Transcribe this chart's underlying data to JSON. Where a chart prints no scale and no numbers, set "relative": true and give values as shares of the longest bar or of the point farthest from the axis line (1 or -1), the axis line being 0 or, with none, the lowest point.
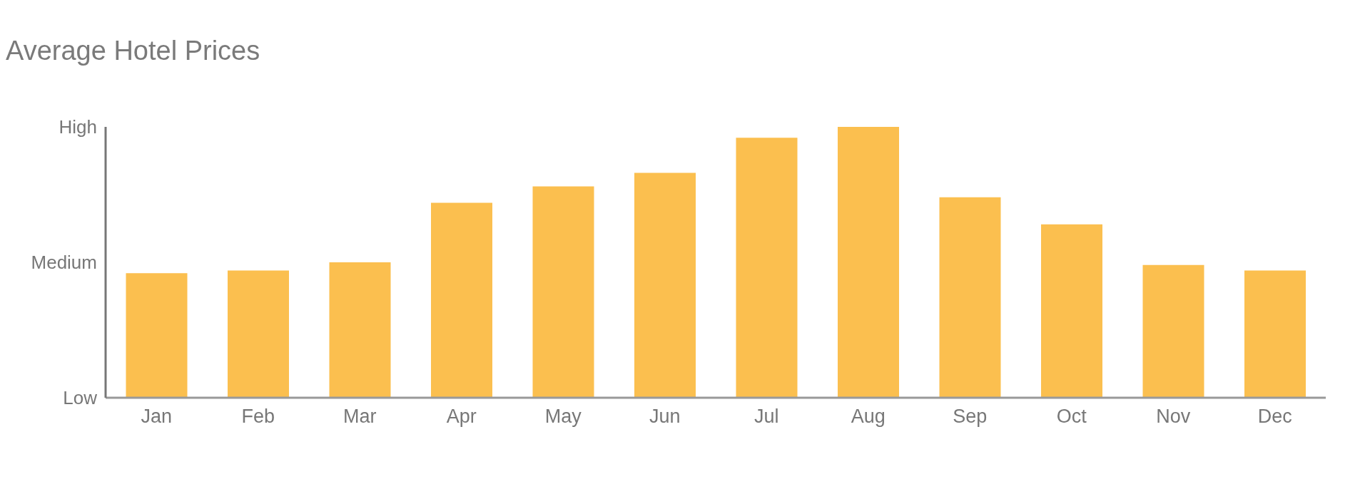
{
  "chart_data": {
    "type": "bar",
    "title": "Average Hotel Prices",
    "categories": [
      "Jan",
      "Feb",
      "Mar",
      "Apr",
      "May",
      "Jun",
      "Jul",
      "Aug",
      "Sep",
      "Oct",
      "Nov",
      "Dec"
    ],
    "values": [
      0.46,
      0.47,
      0.5,
      0.72,
      0.78,
      0.83,
      0.96,
      1.0,
      0.74,
      0.64,
      0.49,
      0.47
    ],
    "color": "#fbbf4f",
    "relative": true,
    "annotations": [
      "Low",
      "Medium",
      "High"
    ],
    "grid": false
  }
}
